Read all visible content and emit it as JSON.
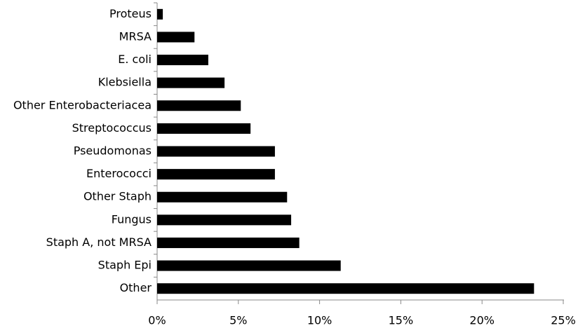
{
  "chart_data": {
    "type": "barh",
    "categories": [
      "Proteus",
      "MRSA",
      "E. coli",
      "Klebsiella",
      "Other Enterobacteriacea",
      "Streptococcus",
      "Pseudomonas",
      "Enterococci",
      "Other Staph",
      "Fungus",
      "Staph A, not MRSA",
      "Staph Epi",
      "Other"
    ],
    "values": [
      0.35,
      2.3,
      3.15,
      4.15,
      5.15,
      5.75,
      7.25,
      7.25,
      8.0,
      8.25,
      8.75,
      11.3,
      23.2
    ],
    "color": "#000000",
    "xlim": [
      0,
      25
    ],
    "xticks": [
      {
        "value": 0,
        "label": "0%"
      },
      {
        "value": 5,
        "label": "5%"
      },
      {
        "value": 10,
        "label": "10%"
      },
      {
        "value": 15,
        "label": "15%"
      },
      {
        "value": 20,
        "label": "20%"
      },
      {
        "value": 25,
        "label": "25%"
      }
    ],
    "grid": false
  }
}
